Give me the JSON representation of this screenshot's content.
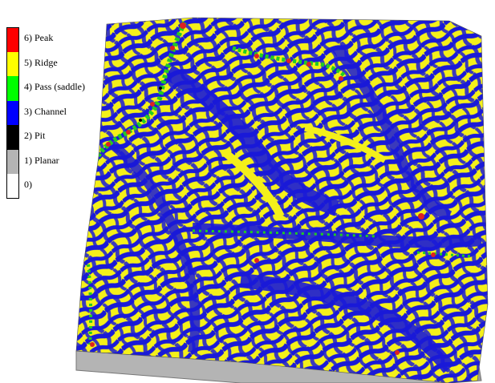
{
  "legend": {
    "items": [
      {
        "label": "6) Peak",
        "color": "#ff0000"
      },
      {
        "label": "5) Ridge",
        "color": "#ffff00"
      },
      {
        "label": "4) Pass (saddle)",
        "color": "#00ff00"
      },
      {
        "label": "3) Channel",
        "color": "#0000ff"
      },
      {
        "label": "2) Pit",
        "color": "#000000"
      },
      {
        "label": "1) Planar",
        "color": "#b4b4b4"
      },
      {
        "label": "0)",
        "color": "#ffffff"
      }
    ]
  },
  "colors": {
    "channel": "#1a1ad8",
    "ridge": "#f4f01a",
    "pass": "#22cc22",
    "peak": "#dd2222",
    "base_side": "#b4b4b4"
  }
}
